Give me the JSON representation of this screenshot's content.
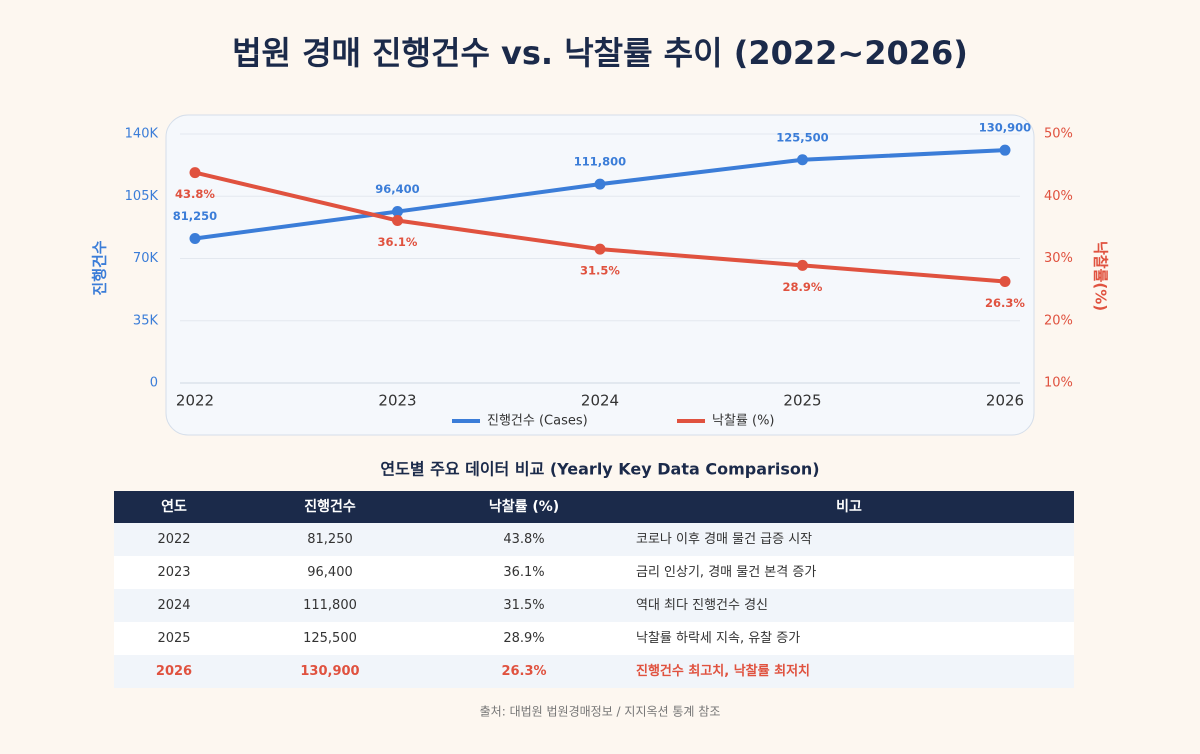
{
  "title": "법원 경매 진행건수 vs. 낙찰률 추이 (2022~2026)",
  "chart_data": {
    "type": "line",
    "categories": [
      "2022",
      "2023",
      "2024",
      "2025",
      "2026"
    ],
    "y_label": "진행건수",
    "y2_label": "낙찰률(%)",
    "ylim": [
      0,
      140000
    ],
    "yticks": [
      0,
      {
        "value": 35000,
        "label": "35K"
      },
      {
        "value": 70000,
        "label": "70K"
      },
      {
        "value": 105000,
        "label": "105K"
      },
      {
        "value": 140000,
        "label": "140K"
      }
    ],
    "y2lim": [
      10,
      50
    ],
    "y2ticks": [
      {
        "value": 10,
        "label": "10%"
      },
      {
        "value": 20,
        "label": "20%"
      },
      {
        "value": 30,
        "label": "30%"
      },
      {
        "value": 40,
        "label": "40%"
      },
      {
        "value": 50,
        "label": "50%"
      }
    ],
    "grid": true,
    "series": [
      {
        "name": "진행건수 (Cases)",
        "color": "#3b7dd8",
        "values": [
          81250,
          96400,
          111800,
          125500,
          130900
        ],
        "value_labels": [
          "81,250",
          "96,400",
          "111,800",
          "125,500",
          "130,900"
        ]
      },
      {
        "name": "낙찰률 (%)",
        "color": "#e0523f",
        "axis": "y2",
        "values": [
          43.8,
          36.1,
          31.5,
          28.9,
          26.3
        ],
        "value_labels": [
          "43.8%",
          "36.1%",
          "31.5%",
          "28.9%",
          "26.3%"
        ]
      }
    ]
  },
  "table": {
    "title": "연도별 주요 데이터 비교 (Yearly Key Data Comparison)",
    "header": [
      "연도",
      "진행건수",
      "낙찰률 (%)",
      "비고"
    ],
    "rows": [
      [
        "2022",
        "81,250",
        "43.8%",
        "코로나 이후 경매 물건 급증 시작"
      ],
      [
        "2023",
        "96,400",
        "36.1%",
        "금리 인상기, 경매 물건 본격 증가"
      ],
      [
        "2024",
        "111,800",
        "31.5%",
        "역대 최다 진행건수 경신"
      ],
      [
        "2025",
        "125,500",
        "28.9%",
        "낙찰률 하락세 지속, 유찰 증가"
      ],
      [
        "2026",
        "130,900",
        "26.3%",
        "진행건수 최고치, 낙찰률 최저치"
      ]
    ],
    "highlight_row": 4,
    "highlight_color": "#e0523f"
  },
  "source": "출처: 대법원 법원경매정보 / 지지옥션 통계 참조"
}
